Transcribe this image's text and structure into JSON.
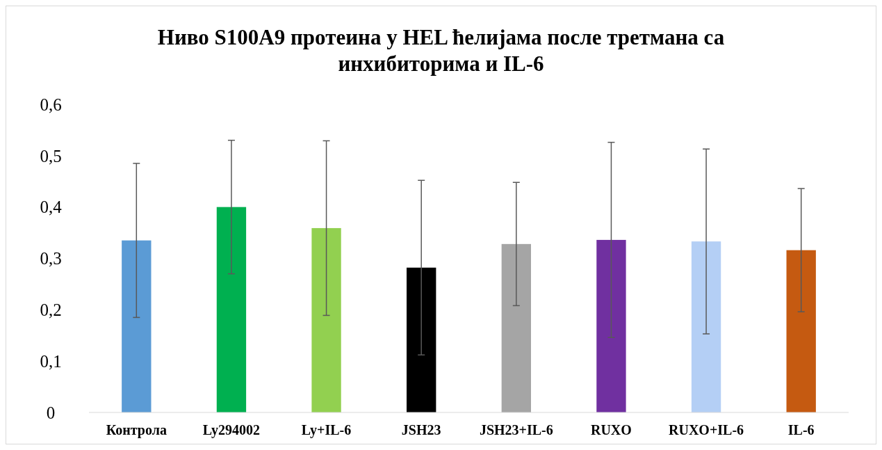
{
  "chart_data": {
    "type": "bar",
    "title": "Ниво S100A9 протеина у HEL ћелијама после третмана са инхибиторима и IL-6",
    "categories": [
      "Контрола",
      "Ly294002",
      "Ly+IL-6",
      "JSH23",
      "JSH23+IL-6",
      "RUXO",
      "RUXO+IL-6",
      "IL-6"
    ],
    "values": [
      0.335,
      0.4,
      0.359,
      0.282,
      0.328,
      0.336,
      0.333,
      0.316
    ],
    "errors": [
      0.15,
      0.13,
      0.17,
      0.17,
      0.12,
      0.19,
      0.18,
      0.12
    ],
    "colors": [
      "#5b9bd5",
      "#00b050",
      "#92d050",
      "#000000",
      "#a5a5a5",
      "#7030a0",
      "#b4cff5",
      "#c55a11"
    ],
    "ylim": [
      0,
      0.6
    ],
    "yticks": [
      {
        "value": 0,
        "label": "0"
      },
      {
        "value": 0.1,
        "label": "0,1"
      },
      {
        "value": 0.2,
        "label": "0,2"
      },
      {
        "value": 0.3,
        "label": "0,3"
      },
      {
        "value": 0.4,
        "label": "0,4"
      },
      {
        "value": 0.5,
        "label": "0,5"
      },
      {
        "value": 0.6,
        "label": "0,6"
      }
    ],
    "grid": false
  }
}
